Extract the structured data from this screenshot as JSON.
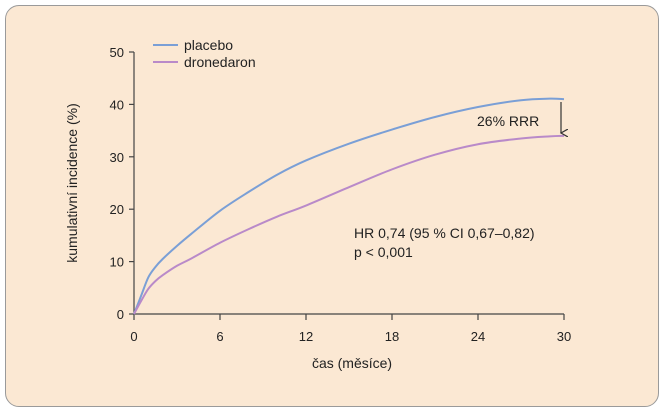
{
  "chart_data": {
    "type": "line",
    "xlabel": "čas (měsíce)",
    "ylabel": "kumulativní incidence (%)",
    "xlim": [
      0,
      30
    ],
    "ylim": [
      0,
      50
    ],
    "x_ticks": [
      0,
      6,
      12,
      18,
      24,
      30
    ],
    "y_ticks": [
      0,
      10,
      20,
      30,
      40,
      50
    ],
    "grid": false,
    "legend_position": "top-left",
    "series": [
      {
        "name": "placebo",
        "color": "#7a9fd6",
        "x": [
          0,
          0.5,
          1,
          1.5,
          2,
          3,
          4,
          6,
          8,
          10,
          12,
          15,
          18,
          21,
          24,
          27,
          29,
          30
        ],
        "y": [
          0,
          3.5,
          7,
          9,
          10.5,
          13,
          15.3,
          19.7,
          23.3,
          26.6,
          29.3,
          32.5,
          35.2,
          37.6,
          39.5,
          40.8,
          41.1,
          41
        ]
      },
      {
        "name": "dronedaron",
        "color": "#b98ac9",
        "x": [
          0,
          0.5,
          1,
          1.5,
          2,
          3,
          4,
          6,
          8,
          10,
          12,
          15,
          18,
          21,
          24,
          27,
          29,
          30
        ],
        "y": [
          0,
          2.5,
          4.8,
          6.3,
          7.4,
          9.2,
          10.6,
          13.6,
          16.2,
          18.6,
          20.7,
          24.2,
          27.6,
          30.4,
          32.4,
          33.5,
          33.9,
          34
        ]
      }
    ],
    "annotations": {
      "rrr": "26% RRR",
      "hr_line1": "HR 0,74 (95 % CI 0,67–0,82)",
      "hr_line2": "p < 0,001"
    }
  }
}
